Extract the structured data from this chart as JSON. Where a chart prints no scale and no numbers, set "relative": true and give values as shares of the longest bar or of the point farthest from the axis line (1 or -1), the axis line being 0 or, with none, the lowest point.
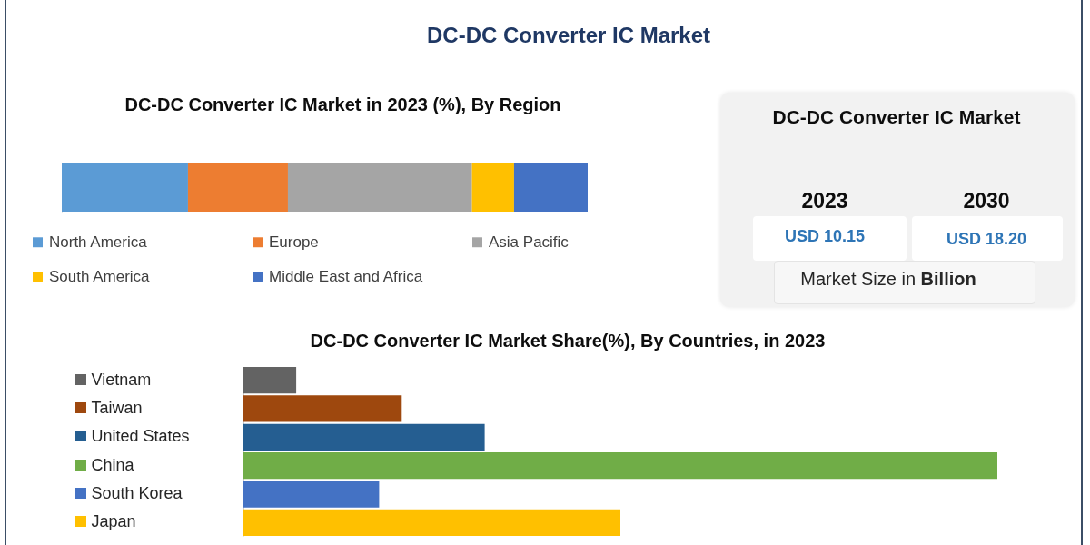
{
  "chart_data": [
    {
      "type": "other",
      "title": "DC-DC Converter IC Market"
    },
    {
      "type": "bar",
      "orientation": "horizontal",
      "stacked": true,
      "relative": true,
      "title": "DC-DC Converter IC Market in 2023 (%), By Region",
      "categories": [
        null
      ],
      "legend": "bottom",
      "series": [
        {
          "name": "North America",
          "color": "#5b9bd5",
          "values": [
            0.24
          ]
        },
        {
          "name": "Europe",
          "color": "#ed7d31",
          "values": [
            0.19
          ]
        },
        {
          "name": "Asia Pacific",
          "color": "#a5a5a5",
          "values": [
            0.35
          ]
        },
        {
          "name": "South America",
          "color": "#ffc000",
          "values": [
            0.08
          ]
        },
        {
          "name": "Middle East and Africa",
          "color": "#4472c4",
          "values": [
            0.14
          ]
        }
      ]
    },
    {
      "type": "other",
      "title": "DC-DC Converter IC Market",
      "annotations": [
        "2023",
        "2030",
        "USD 10.15",
        "USD 18.20",
        "Market Size in Billion"
      ]
    },
    {
      "type": "bar",
      "orientation": "horizontal",
      "relative": true,
      "title": "DC-DC Converter IC Market Share(%), By Countries, in 2023",
      "categories": [
        "Vietnam",
        "Taiwan",
        "United States",
        "China",
        "South Korea",
        "Japan"
      ],
      "values": [
        0.07,
        0.21,
        0.32,
        1,
        0.18,
        0.5
      ],
      "colors": [
        "#636363",
        "#9e480e",
        "#255e91",
        "#70ad47",
        "#4472c4",
        "#ffc000"
      ]
    }
  ]
}
